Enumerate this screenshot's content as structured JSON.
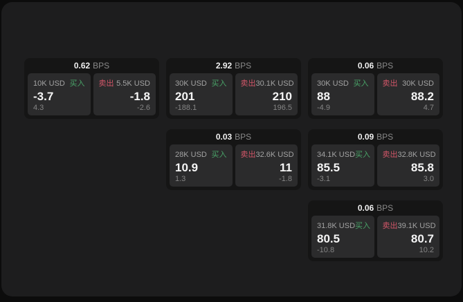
{
  "labels": {
    "bps_unit": "BPS",
    "buy": "买入",
    "sell": "卖出"
  },
  "colors": {
    "surface": "#1d1d1e",
    "card": "#151515",
    "panel": "#2b2b2c",
    "buy_green": "#49a368",
    "sell_red": "#d25668"
  },
  "cards": [
    {
      "row": 1,
      "col": 1,
      "bps": "0.62",
      "buy": {
        "amount": "10K USD",
        "value": "-3.7",
        "delta": "4.3"
      },
      "sell": {
        "amount": "5.5K USD",
        "value": "-1.8",
        "delta": "-2.6"
      }
    },
    {
      "row": 1,
      "col": 2,
      "bps": "2.92",
      "buy": {
        "amount": "30K USD",
        "value": "201",
        "delta": "-188.1"
      },
      "sell": {
        "amount": "30.1K USD",
        "value": "210",
        "delta": "196.5"
      }
    },
    {
      "row": 1,
      "col": 3,
      "bps": "0.06",
      "buy": {
        "amount": "30K USD",
        "value": "88",
        "delta": "-4.9"
      },
      "sell": {
        "amount": "30K USD",
        "value": "88.2",
        "delta": "4.7"
      }
    },
    {
      "row": 2,
      "col": 2,
      "bps": "0.03",
      "buy": {
        "amount": "28K USD",
        "value": "10.9",
        "delta": "1.3"
      },
      "sell": {
        "amount": "32.6K USD",
        "value": "11",
        "delta": "-1.8"
      }
    },
    {
      "row": 2,
      "col": 3,
      "bps": "0.09",
      "buy": {
        "amount": "34.1K USD",
        "value": "85.5",
        "delta": "-3.1"
      },
      "sell": {
        "amount": "32.8K USD",
        "value": "85.8",
        "delta": "3.0"
      }
    },
    {
      "row": 3,
      "col": 3,
      "bps": "0.06",
      "buy": {
        "amount": "31.8K USD",
        "value": "80.5",
        "delta": "-10.8"
      },
      "sell": {
        "amount": "39.1K USD",
        "value": "80.7",
        "delta": "10.2"
      }
    }
  ]
}
